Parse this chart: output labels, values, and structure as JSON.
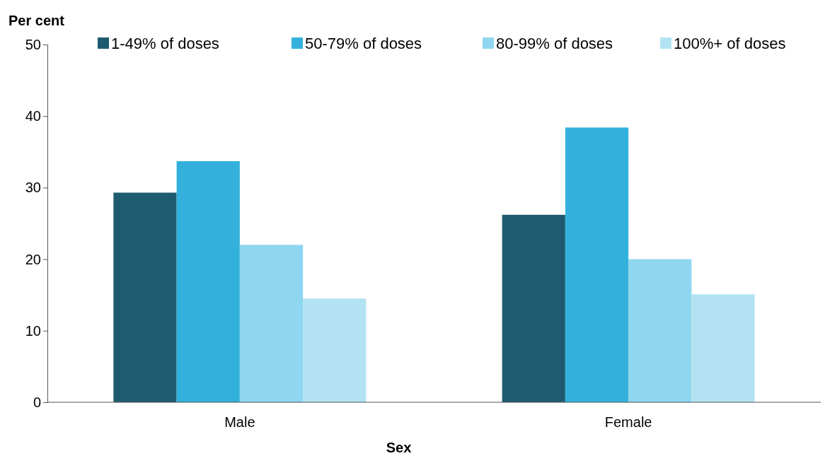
{
  "chart_data": {
    "type": "bar",
    "ylabel": "Per cent",
    "xlabel": "Sex",
    "categories": [
      "Male",
      "Female"
    ],
    "series": [
      {
        "name": "1-49% of doses",
        "color": "#1f5b6e",
        "values": [
          29.3,
          26.2
        ]
      },
      {
        "name": "50-79% of doses",
        "color": "#33b1dc",
        "values": [
          33.7,
          38.4
        ]
      },
      {
        "name": "80-99% of doses",
        "color": "#8fd6f0",
        "values": [
          22.0,
          20.0
        ]
      },
      {
        "name": "100%+ of doses",
        "color": "#b3e3f3",
        "values": [
          14.5,
          15.1
        ]
      }
    ],
    "ylim": [
      0,
      50
    ],
    "yticks": [
      0,
      10,
      20,
      30,
      40,
      50
    ],
    "grid": false,
    "legend": "top right"
  }
}
